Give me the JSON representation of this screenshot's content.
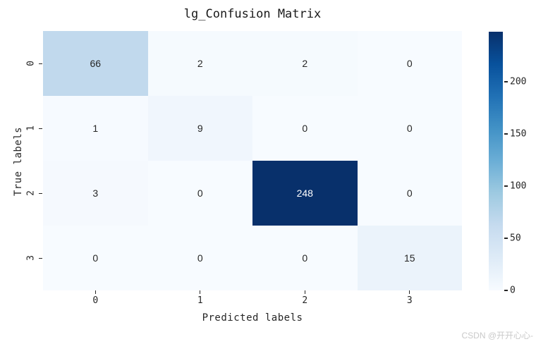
{
  "watermark": "CSDN @开开心心-",
  "chart_data": {
    "type": "heatmap",
    "title": "lg_Confusion Matrix",
    "xlabel": "Predicted labels",
    "ylabel": "True labels",
    "x_ticklabels": [
      "0",
      "1",
      "2",
      "3"
    ],
    "y_ticklabels": [
      "0",
      "1",
      "2",
      "3"
    ],
    "matrix": [
      [
        66,
        2,
        2,
        0
      ],
      [
        1,
        9,
        0,
        0
      ],
      [
        3,
        0,
        248,
        0
      ],
      [
        0,
        0,
        0,
        15
      ]
    ],
    "vmin": 0,
    "vmax": 248,
    "colormap": "Blues",
    "colorbar_ticks": [
      0,
      50,
      100,
      150,
      200
    ],
    "colormap_anchors": [
      {
        "pos": 0.0,
        "color": "#f7fbff"
      },
      {
        "pos": 0.125,
        "color": "#deebf7"
      },
      {
        "pos": 0.25,
        "color": "#c6dbef"
      },
      {
        "pos": 0.375,
        "color": "#9ecae1"
      },
      {
        "pos": 0.5,
        "color": "#6baed6"
      },
      {
        "pos": 0.625,
        "color": "#4292c6"
      },
      {
        "pos": 0.75,
        "color": "#2171b5"
      },
      {
        "pos": 0.875,
        "color": "#08519c"
      },
      {
        "pos": 1.0,
        "color": "#08306b"
      }
    ],
    "annot_color_dark": "#262626",
    "annot_color_light": "#ffffff",
    "legend_position": "right-colorbar",
    "grid": false
  }
}
